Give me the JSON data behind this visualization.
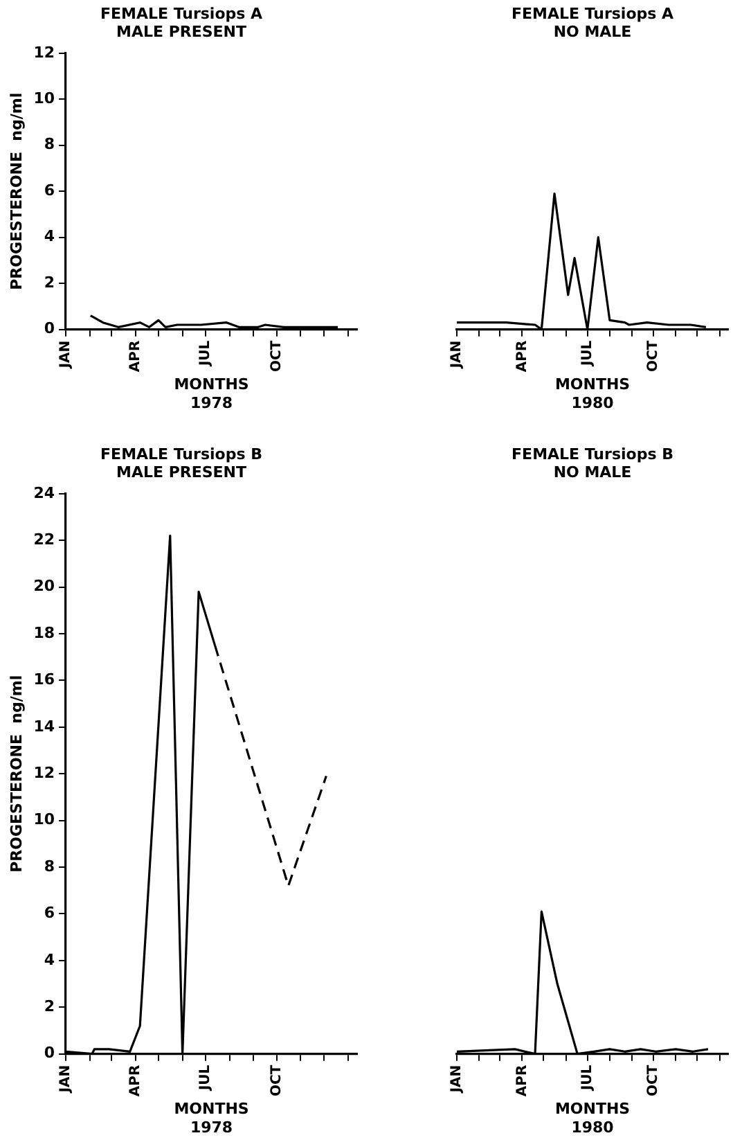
{
  "chart_data": [
    {
      "type": "line",
      "title": "FEMALE Tursiops A",
      "subtitle": "MALE PRESENT",
      "xlabel": "MONTHS\n1978",
      "ylabel": "PROGESTERONE  ng/ml",
      "xlim": [
        "1978-01-01",
        "1979-01-13"
      ],
      "xticks": [
        {
          "value": "1978-01-01",
          "label": "JAN"
        },
        {
          "value": "1978-02-01",
          "label": null
        },
        {
          "value": "1978-03-01",
          "label": null
        },
        {
          "value": "1978-04-01",
          "label": "APR"
        },
        {
          "value": "1978-05-01",
          "label": null
        },
        {
          "value": "1978-06-01",
          "label": null
        },
        {
          "value": "1978-07-01",
          "label": "JUL"
        },
        {
          "value": "1978-08-01",
          "label": null
        },
        {
          "value": "1978-09-01",
          "label": null
        },
        {
          "value": "1978-10-01",
          "label": "OCT"
        },
        {
          "value": "1978-11-01",
          "label": null
        },
        {
          "value": "1978-12-01",
          "label": null
        },
        {
          "value": "1979-01-01",
          "label": null
        }
      ],
      "ylim": [
        0,
        12
      ],
      "yticks": [
        0,
        2,
        4,
        6,
        8,
        10,
        12
      ],
      "legend": false,
      "series": [
        {
          "color": "#000000",
          "x": [
            "1978-02-02",
            "1978-02-18",
            "1978-03-10",
            "1978-04-07",
            "1978-04-19",
            "1978-05-01",
            "1978-05-10",
            "1978-05-25",
            "1978-06-25",
            "1978-07-28",
            "1978-08-13",
            "1978-09-07",
            "1978-09-16",
            "1978-10-10",
            "1978-12-19"
          ],
          "values": [
            0.6,
            0.3,
            0.1,
            0.3,
            0.1,
            0.4,
            0.1,
            0.2,
            0.2,
            0.3,
            0.1,
            0.1,
            0.2,
            0.1,
            0.1
          ]
        }
      ]
    },
    {
      "type": "line",
      "title": "FEMALE Tursiops A",
      "subtitle": "NO MALE",
      "xlabel": "MONTHS\n1980",
      "xlim": [
        "1980-01-01",
        "1981-01-13"
      ],
      "xticks": [
        {
          "value": "1980-01-01",
          "label": "JAN"
        },
        {
          "value": "1980-02-01",
          "label": null
        },
        {
          "value": "1980-03-01",
          "label": null
        },
        {
          "value": "1980-04-01",
          "label": "APR"
        },
        {
          "value": "1980-05-01",
          "label": null
        },
        {
          "value": "1980-06-01",
          "label": null
        },
        {
          "value": "1980-07-01",
          "label": "JUL"
        },
        {
          "value": "1980-08-01",
          "label": null
        },
        {
          "value": "1980-09-01",
          "label": null
        },
        {
          "value": "1980-10-01",
          "label": "OCT"
        },
        {
          "value": "1980-11-01",
          "label": null
        },
        {
          "value": "1980-12-01",
          "label": null
        },
        {
          "value": "1981-01-01",
          "label": null
        }
      ],
      "ylim": [
        0,
        12
      ],
      "tick_labels": "x",
      "legend": false,
      "series": [
        {
          "color": "#000000",
          "x": [
            "1980-01-01",
            "1980-03-10",
            "1980-04-19",
            "1980-04-28",
            "1980-05-16",
            "1980-06-04",
            "1980-06-13",
            "1980-07-01",
            "1980-07-16",
            "1980-08-01",
            "1980-08-22",
            "1980-08-28",
            "1980-09-22",
            "1980-10-22",
            "1980-11-22",
            "1980-12-13"
          ],
          "values": [
            0.3,
            0.3,
            0.2,
            0,
            5.9,
            1.5,
            3.1,
            0,
            4.0,
            0.4,
            0.3,
            0.2,
            0.3,
            0.2,
            0.2,
            0.1
          ]
        }
      ]
    },
    {
      "type": "line",
      "title": "FEMALE Tursiops B",
      "subtitle": "MALE PRESENT",
      "xlabel": "MONTHS\n1978",
      "ylabel": "PROGESTERONE  ng/ml",
      "xlim": [
        "1978-01-01",
        "1979-01-13"
      ],
      "xticks": [
        {
          "value": "1978-01-01",
          "label": "JAN"
        },
        {
          "value": "1978-02-01",
          "label": null
        },
        {
          "value": "1978-03-01",
          "label": null
        },
        {
          "value": "1978-04-01",
          "label": "APR"
        },
        {
          "value": "1978-05-01",
          "label": null
        },
        {
          "value": "1978-06-01",
          "label": null
        },
        {
          "value": "1978-07-01",
          "label": "JUL"
        },
        {
          "value": "1978-08-01",
          "label": null
        },
        {
          "value": "1978-09-01",
          "label": null
        },
        {
          "value": "1978-10-01",
          "label": "OCT"
        },
        {
          "value": "1978-11-01",
          "label": null
        },
        {
          "value": "1978-12-01",
          "label": null
        },
        {
          "value": "1979-01-01",
          "label": null
        }
      ],
      "ylim": [
        0,
        24
      ],
      "yticks": [
        0,
        2,
        4,
        6,
        8,
        10,
        12,
        14,
        16,
        18,
        20,
        22,
        24
      ],
      "legend": false,
      "series": [
        {
          "color": "#000000",
          "x": [
            "1978-01-01",
            "1978-02-04",
            "1978-02-07",
            "1978-02-26",
            "1978-03-25",
            "1978-04-07",
            "1978-05-16",
            "1978-06-01",
            "1978-06-22",
            "1978-07-13"
          ],
          "values": [
            0.1,
            0,
            0.2,
            0.2,
            0.1,
            1.2,
            22.2,
            0,
            19.8,
            17.5
          ]
        },
        {
          "color": "#000000",
          "line_style": "dashed",
          "x": [
            "1978-07-13",
            "1978-10-16",
            "1978-12-04"
          ],
          "values": [
            17.5,
            7.2,
            11.9
          ]
        }
      ]
    },
    {
      "type": "line",
      "title": "FEMALE Tursiops B",
      "subtitle": "NO MALE",
      "xlabel": "MONTHS\n1980",
      "xlim": [
        "1980-01-01",
        "1981-01-13"
      ],
      "xticks": [
        {
          "value": "1980-01-01",
          "label": "JAN"
        },
        {
          "value": "1980-02-01",
          "label": null
        },
        {
          "value": "1980-03-01",
          "label": null
        },
        {
          "value": "1980-04-01",
          "label": "APR"
        },
        {
          "value": "1980-05-01",
          "label": null
        },
        {
          "value": "1980-06-01",
          "label": null
        },
        {
          "value": "1980-07-01",
          "label": "JUL"
        },
        {
          "value": "1980-08-01",
          "label": null
        },
        {
          "value": "1980-09-01",
          "label": null
        },
        {
          "value": "1980-10-01",
          "label": "OCT"
        },
        {
          "value": "1980-11-01",
          "label": null
        },
        {
          "value": "1980-12-01",
          "label": null
        },
        {
          "value": "1981-01-01",
          "label": null
        }
      ],
      "ylim": [
        0,
        24
      ],
      "tick_labels": "x",
      "legend": false,
      "series": [
        {
          "color": "#000000",
          "x": [
            "1980-01-01",
            "1980-03-22",
            "1980-04-19",
            "1980-04-28",
            "1980-05-20",
            "1980-06-17",
            "1980-07-10",
            "1980-08-01",
            "1980-08-22",
            "1980-09-13",
            "1980-10-04",
            "1980-11-01",
            "1980-11-25",
            "1980-12-16"
          ],
          "values": [
            0.1,
            0.2,
            0,
            6.1,
            3.0,
            0,
            0.1,
            0.2,
            0.1,
            0.2,
            0.1,
            0.2,
            0.1,
            0.2
          ]
        }
      ]
    }
  ]
}
